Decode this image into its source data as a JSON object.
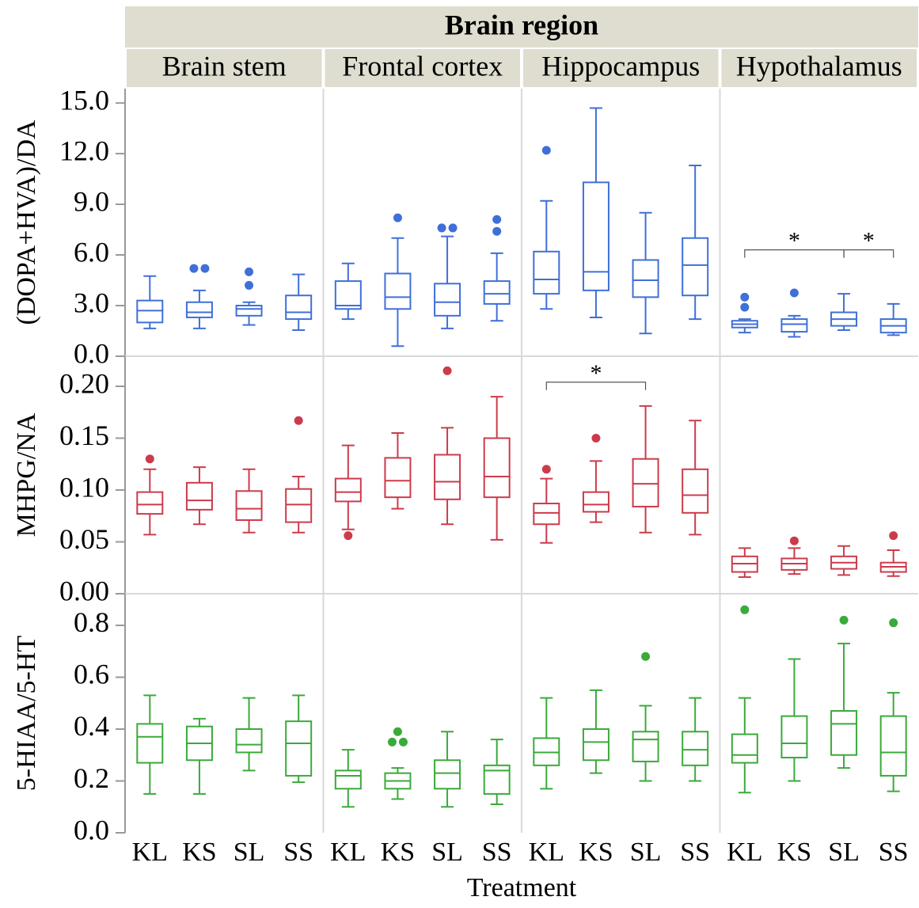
{
  "chart_data": {
    "type": "box",
    "title": "Brain region",
    "x_label": "Treatment",
    "facets": [
      "Brain stem",
      "Frontal cortex",
      "Hippocampus",
      "Hypothalamus"
    ],
    "categories": [
      "KL",
      "KS",
      "SL",
      "SS"
    ],
    "panels": [
      {
        "y_label": "(DOPA+HVA)/DA",
        "color": "#3f6fd8",
        "ylim": [
          0,
          15.85
        ],
        "yticks": [
          {
            "value": 0,
            "label": "0.0"
          },
          {
            "value": 3,
            "label": "3.0"
          },
          {
            "value": 6,
            "label": "6.0"
          },
          {
            "value": 9,
            "label": "9.0"
          },
          {
            "value": 12,
            "label": "12.0"
          },
          {
            "value": 15,
            "label": "15.0"
          }
        ],
        "boxes": [
          [
            {
              "low": 1.65,
              "q1": 2.0,
              "median": 2.7,
              "q3": 3.3,
              "high": 4.75,
              "outliers": []
            },
            {
              "low": 1.65,
              "q1": 2.3,
              "median": 2.6,
              "q3": 3.2,
              "high": 3.9,
              "outliers": [
                5.2,
                5.2
              ]
            },
            {
              "low": 1.85,
              "q1": 2.4,
              "median": 2.8,
              "q3": 3.0,
              "high": 3.2,
              "outliers": [
                5.0,
                4.2
              ]
            },
            {
              "low": 1.55,
              "q1": 2.2,
              "median": 2.6,
              "q3": 3.6,
              "high": 4.85,
              "outliers": []
            }
          ],
          [
            {
              "low": 2.2,
              "q1": 2.8,
              "median": 3.0,
              "q3": 4.45,
              "high": 5.5,
              "outliers": []
            },
            {
              "low": 0.6,
              "q1": 2.8,
              "median": 3.5,
              "q3": 4.9,
              "high": 7.0,
              "outliers": [
                8.2
              ]
            },
            {
              "low": 1.65,
              "q1": 2.4,
              "median": 3.2,
              "q3": 4.3,
              "high": 7.1,
              "outliers": [
                7.6,
                7.6
              ]
            },
            {
              "low": 2.1,
              "q1": 3.1,
              "median": 3.7,
              "q3": 4.45,
              "high": 6.1,
              "outliers": [
                8.1,
                7.4
              ]
            }
          ],
          [
            {
              "low": 2.8,
              "q1": 3.7,
              "median": 4.55,
              "q3": 6.2,
              "high": 9.2,
              "outliers": [
                12.2
              ]
            },
            {
              "low": 2.3,
              "q1": 3.9,
              "median": 5.0,
              "q3": 10.3,
              "high": 14.7,
              "outliers": []
            },
            {
              "low": 1.35,
              "q1": 3.5,
              "median": 4.5,
              "q3": 5.7,
              "high": 8.5,
              "outliers": []
            },
            {
              "low": 2.2,
              "q1": 3.6,
              "median": 5.4,
              "q3": 7.0,
              "high": 11.3,
              "outliers": []
            }
          ],
          [
            {
              "low": 1.4,
              "q1": 1.7,
              "median": 1.9,
              "q3": 2.1,
              "high": 2.2,
              "outliers": [
                3.5,
                2.9
              ]
            },
            {
              "low": 1.15,
              "q1": 1.45,
              "median": 1.9,
              "q3": 2.2,
              "high": 2.4,
              "outliers": [
                3.75
              ]
            },
            {
              "low": 1.55,
              "q1": 1.8,
              "median": 2.2,
              "q3": 2.6,
              "high": 3.7,
              "outliers": []
            },
            {
              "low": 1.25,
              "q1": 1.4,
              "median": 1.8,
              "q3": 2.2,
              "high": 3.1,
              "outliers": []
            }
          ]
        ],
        "annotations": [
          {
            "facet": "Hypothalamus",
            "from": "KL",
            "to": "SL",
            "y": 6.3,
            "text": "*"
          },
          {
            "facet": "Hypothalamus",
            "from": "SL",
            "to": "SS",
            "y": 6.3,
            "text": "*"
          }
        ]
      },
      {
        "y_label": "MHPG/NA",
        "color": "#cc3b4b",
        "ylim": [
          0,
          0.229
        ],
        "yticks": [
          {
            "value": 0,
            "label": "0.00"
          },
          {
            "value": 0.05,
            "label": "0.05"
          },
          {
            "value": 0.1,
            "label": "0.10"
          },
          {
            "value": 0.15,
            "label": "0.15"
          },
          {
            "value": 0.2,
            "label": "0.20"
          }
        ],
        "boxes": [
          [
            {
              "low": 0.057,
              "q1": 0.077,
              "median": 0.086,
              "q3": 0.098,
              "high": 0.12,
              "outliers": [
                0.13
              ]
            },
            {
              "low": 0.067,
              "q1": 0.081,
              "median": 0.09,
              "q3": 0.107,
              "high": 0.122,
              "outliers": []
            },
            {
              "low": 0.059,
              "q1": 0.071,
              "median": 0.082,
              "q3": 0.099,
              "high": 0.12,
              "outliers": []
            },
            {
              "low": 0.059,
              "q1": 0.069,
              "median": 0.086,
              "q3": 0.101,
              "high": 0.113,
              "outliers": [
                0.167
              ]
            }
          ],
          [
            {
              "low": 0.062,
              "q1": 0.089,
              "median": 0.098,
              "q3": 0.111,
              "high": 0.143,
              "outliers": [
                0.056
              ]
            },
            {
              "low": 0.082,
              "q1": 0.093,
              "median": 0.109,
              "q3": 0.131,
              "high": 0.155,
              "outliers": []
            },
            {
              "low": 0.067,
              "q1": 0.091,
              "median": 0.108,
              "q3": 0.134,
              "high": 0.16,
              "outliers": [
                0.215
              ]
            },
            {
              "low": 0.052,
              "q1": 0.093,
              "median": 0.113,
              "q3": 0.15,
              "high": 0.19,
              "outliers": []
            }
          ],
          [
            {
              "low": 0.049,
              "q1": 0.067,
              "median": 0.078,
              "q3": 0.087,
              "high": 0.111,
              "outliers": [
                0.12
              ]
            },
            {
              "low": 0.069,
              "q1": 0.079,
              "median": 0.086,
              "q3": 0.098,
              "high": 0.128,
              "outliers": [
                0.15
              ]
            },
            {
              "low": 0.059,
              "q1": 0.084,
              "median": 0.106,
              "q3": 0.13,
              "high": 0.181,
              "outliers": []
            },
            {
              "low": 0.057,
              "q1": 0.078,
              "median": 0.095,
              "q3": 0.12,
              "high": 0.167,
              "outliers": []
            }
          ],
          [
            {
              "low": 0.016,
              "q1": 0.021,
              "median": 0.029,
              "q3": 0.036,
              "high": 0.044,
              "outliers": []
            },
            {
              "low": 0.019,
              "q1": 0.023,
              "median": 0.029,
              "q3": 0.034,
              "high": 0.044,
              "outliers": [
                0.051
              ]
            },
            {
              "low": 0.018,
              "q1": 0.024,
              "median": 0.03,
              "q3": 0.036,
              "high": 0.046,
              "outliers": []
            },
            {
              "low": 0.017,
              "q1": 0.021,
              "median": 0.026,
              "q3": 0.03,
              "high": 0.042,
              "outliers": [
                0.056
              ]
            }
          ]
        ],
        "annotations": [
          {
            "facet": "Hippocampus",
            "from": "KL",
            "to": "SL",
            "y": 0.204,
            "text": "*"
          }
        ]
      },
      {
        "y_label": "5-HIAA/5-HT",
        "color": "#3aaa3a",
        "ylim": [
          0,
          0.922
        ],
        "yticks": [
          {
            "value": 0,
            "label": "0.0"
          },
          0.2,
          0.4,
          0.6,
          0.8
        ],
        "boxes": [
          [
            {
              "low": 0.15,
              "q1": 0.27,
              "median": 0.37,
              "q3": 0.42,
              "high": 0.53,
              "outliers": []
            },
            {
              "low": 0.15,
              "q1": 0.28,
              "median": 0.345,
              "q3": 0.41,
              "high": 0.44,
              "outliers": []
            },
            {
              "low": 0.24,
              "q1": 0.31,
              "median": 0.34,
              "q3": 0.4,
              "high": 0.52,
              "outliers": []
            },
            {
              "low": 0.195,
              "q1": 0.22,
              "median": 0.345,
              "q3": 0.43,
              "high": 0.53,
              "outliers": []
            }
          ],
          [
            {
              "low": 0.1,
              "q1": 0.17,
              "median": 0.22,
              "q3": 0.24,
              "high": 0.32,
              "outliers": []
            },
            {
              "low": 0.13,
              "q1": 0.17,
              "median": 0.2,
              "q3": 0.23,
              "high": 0.25,
              "outliers": [
                0.39,
                0.35,
                0.35
              ]
            },
            {
              "low": 0.1,
              "q1": 0.17,
              "median": 0.23,
              "q3": 0.28,
              "high": 0.39,
              "outliers": []
            },
            {
              "low": 0.11,
              "q1": 0.15,
              "median": 0.24,
              "q3": 0.26,
              "high": 0.36,
              "outliers": []
            }
          ],
          [
            {
              "low": 0.17,
              "q1": 0.26,
              "median": 0.31,
              "q3": 0.365,
              "high": 0.52,
              "outliers": []
            },
            {
              "low": 0.23,
              "q1": 0.28,
              "median": 0.35,
              "q3": 0.4,
              "high": 0.55,
              "outliers": []
            },
            {
              "low": 0.2,
              "q1": 0.275,
              "median": 0.36,
              "q3": 0.39,
              "high": 0.49,
              "outliers": [
                0.68
              ]
            },
            {
              "low": 0.2,
              "q1": 0.26,
              "median": 0.32,
              "q3": 0.39,
              "high": 0.52,
              "outliers": []
            }
          ],
          [
            {
              "low": 0.155,
              "q1": 0.27,
              "median": 0.3,
              "q3": 0.38,
              "high": 0.52,
              "outliers": [
                0.86
              ]
            },
            {
              "low": 0.2,
              "q1": 0.29,
              "median": 0.345,
              "q3": 0.45,
              "high": 0.67,
              "outliers": []
            },
            {
              "low": 0.25,
              "q1": 0.3,
              "median": 0.42,
              "q3": 0.47,
              "high": 0.73,
              "outliers": [
                0.82
              ]
            },
            {
              "low": 0.16,
              "q1": 0.22,
              "median": 0.31,
              "q3": 0.45,
              "high": 0.54,
              "outliers": [
                0.81
              ]
            }
          ]
        ],
        "annotations": []
      }
    ]
  }
}
